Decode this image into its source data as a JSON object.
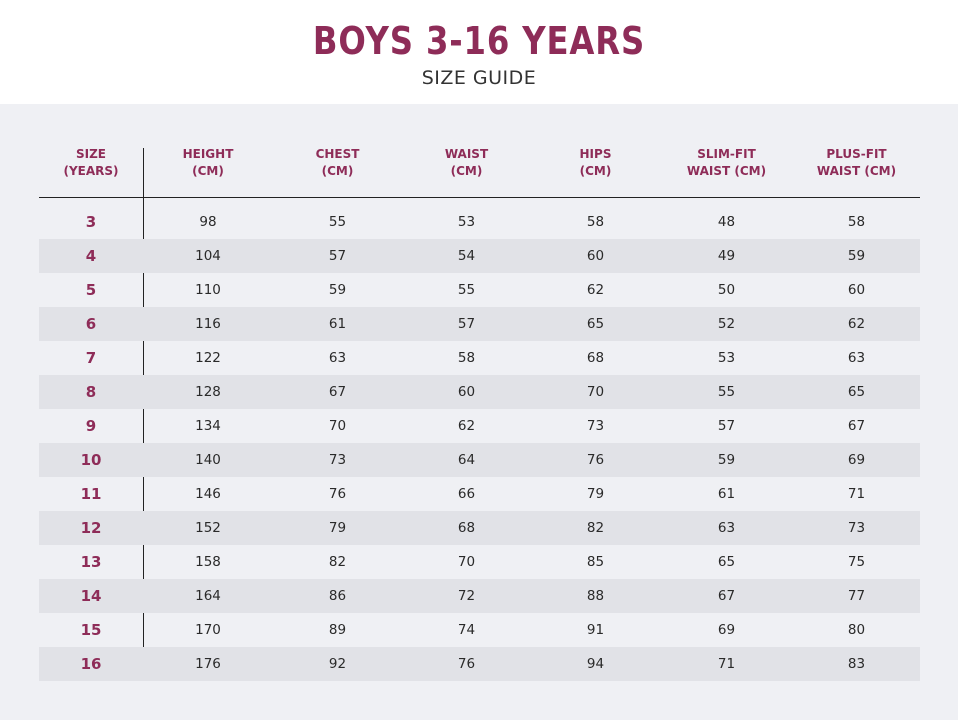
{
  "header": {
    "title": "BOYS 3-16 YEARS",
    "subtitle": "SIZE GUIDE"
  },
  "colors": {
    "accent": "#8e2c58",
    "panel": "#eff0f4",
    "row_shade": "#e1e2e7"
  },
  "table": {
    "columns": [
      {
        "line1": "SIZE",
        "line2": "(YEARS)"
      },
      {
        "line1": "HEIGHT",
        "line2": "(CM)"
      },
      {
        "line1": "CHEST",
        "line2": "(CM)"
      },
      {
        "line1": "WAIST",
        "line2": "(CM)"
      },
      {
        "line1": "HIPS",
        "line2": "(CM)"
      },
      {
        "line1": "SLIM-FIT",
        "line2": "WAIST (CM)"
      },
      {
        "line1": "PLUS-FIT",
        "line2": "WAIST (CM)"
      }
    ],
    "rows": [
      [
        "3",
        "98",
        "55",
        "53",
        "58",
        "48",
        "58"
      ],
      [
        "4",
        "104",
        "57",
        "54",
        "60",
        "49",
        "59"
      ],
      [
        "5",
        "110",
        "59",
        "55",
        "62",
        "50",
        "60"
      ],
      [
        "6",
        "116",
        "61",
        "57",
        "65",
        "52",
        "62"
      ],
      [
        "7",
        "122",
        "63",
        "58",
        "68",
        "53",
        "63"
      ],
      [
        "8",
        "128",
        "67",
        "60",
        "70",
        "55",
        "65"
      ],
      [
        "9",
        "134",
        "70",
        "62",
        "73",
        "57",
        "67"
      ],
      [
        "10",
        "140",
        "73",
        "64",
        "76",
        "59",
        "69"
      ],
      [
        "11",
        "146",
        "76",
        "66",
        "79",
        "61",
        "71"
      ],
      [
        "12",
        "152",
        "79",
        "68",
        "82",
        "63",
        "73"
      ],
      [
        "13",
        "158",
        "82",
        "70",
        "85",
        "65",
        "75"
      ],
      [
        "14",
        "164",
        "86",
        "72",
        "88",
        "67",
        "77"
      ],
      [
        "15",
        "170",
        "89",
        "74",
        "91",
        "69",
        "80"
      ],
      [
        "16",
        "176",
        "92",
        "76",
        "94",
        "71",
        "83"
      ]
    ]
  }
}
